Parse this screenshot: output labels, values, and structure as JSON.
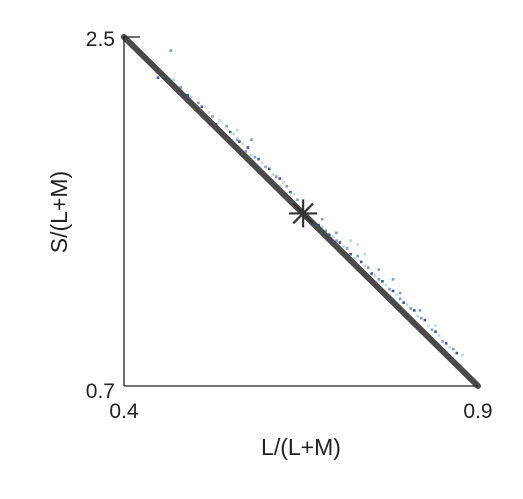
{
  "chart_data": {
    "type": "scatter",
    "title": "",
    "xlabel": "L/(L+M)",
    "ylabel": "S/(L+M)",
    "xlim": [
      0.4,
      0.9
    ],
    "ylim": [
      0.7,
      2.5
    ],
    "xticks": [
      "0.4",
      "0.9"
    ],
    "yticks": [
      "0.7",
      "2.5"
    ],
    "grid": false,
    "legend": "none",
    "line": {
      "x": [
        0.4,
        0.9
      ],
      "y": [
        2.5,
        0.7
      ],
      "color": "#4a4a4a"
    },
    "marker": {
      "x": 0.653,
      "y": 1.59,
      "symbol": "asterisk",
      "color": "#333333"
    },
    "points": [
      [
        0.466,
        2.43,
        1
      ],
      [
        0.445,
        2.32,
        2
      ],
      [
        0.448,
        2.29,
        0
      ],
      [
        0.47,
        2.28,
        2
      ],
      [
        0.48,
        2.24,
        1
      ],
      [
        0.49,
        2.2,
        0
      ],
      [
        0.495,
        2.19,
        2
      ],
      [
        0.505,
        2.16,
        1
      ],
      [
        0.51,
        2.14,
        0
      ],
      [
        0.52,
        2.11,
        2
      ],
      [
        0.525,
        2.09,
        1
      ],
      [
        0.53,
        2.05,
        0
      ],
      [
        0.535,
        2.07,
        2
      ],
      [
        0.545,
        2.04,
        1
      ],
      [
        0.55,
        2.01,
        0
      ],
      [
        0.555,
        2.0,
        2
      ],
      [
        0.56,
        1.97,
        1
      ],
      [
        0.563,
        1.96,
        0
      ],
      [
        0.568,
        1.95,
        2
      ],
      [
        0.572,
        1.91,
        1
      ],
      [
        0.575,
        1.93,
        0
      ],
      [
        0.58,
        1.89,
        2
      ],
      [
        0.585,
        1.88,
        1
      ],
      [
        0.59,
        1.87,
        0
      ],
      [
        0.595,
        1.85,
        2
      ],
      [
        0.6,
        1.83,
        1
      ],
      [
        0.605,
        1.82,
        0
      ],
      [
        0.61,
        1.79,
        2
      ],
      [
        0.615,
        1.78,
        1
      ],
      [
        0.62,
        1.77,
        0
      ],
      [
        0.625,
        1.75,
        2
      ],
      [
        0.63,
        1.73,
        1
      ],
      [
        0.635,
        1.7,
        0
      ],
      [
        0.64,
        1.69,
        2
      ],
      [
        0.645,
        1.66,
        1
      ],
      [
        0.66,
        1.57,
        0
      ],
      [
        0.665,
        1.55,
        2
      ],
      [
        0.67,
        1.54,
        1
      ],
      [
        0.675,
        1.53,
        0
      ],
      [
        0.68,
        1.52,
        2
      ],
      [
        0.685,
        1.5,
        1
      ],
      [
        0.69,
        1.48,
        0
      ],
      [
        0.695,
        1.47,
        2
      ],
      [
        0.7,
        1.45,
        1
      ],
      [
        0.705,
        1.44,
        0
      ],
      [
        0.71,
        1.42,
        2
      ],
      [
        0.715,
        1.41,
        1
      ],
      [
        0.72,
        1.38,
        0
      ],
      [
        0.725,
        1.36,
        2
      ],
      [
        0.73,
        1.37,
        1
      ],
      [
        0.735,
        1.34,
        0
      ],
      [
        0.74,
        1.32,
        2
      ],
      [
        0.745,
        1.31,
        1
      ],
      [
        0.75,
        1.28,
        0
      ],
      [
        0.755,
        1.27,
        2
      ],
      [
        0.76,
        1.25,
        1
      ],
      [
        0.765,
        1.24,
        0
      ],
      [
        0.77,
        1.22,
        2
      ],
      [
        0.775,
        1.2,
        1
      ],
      [
        0.78,
        1.19,
        0
      ],
      [
        0.785,
        1.17,
        2
      ],
      [
        0.79,
        1.15,
        1
      ],
      [
        0.795,
        1.13,
        0
      ],
      [
        0.8,
        1.12,
        2
      ],
      [
        0.805,
        1.1,
        1
      ],
      [
        0.81,
        1.09,
        0
      ],
      [
        0.815,
        1.06,
        2
      ],
      [
        0.82,
        1.05,
        1
      ],
      [
        0.825,
        1.04,
        0
      ],
      [
        0.83,
        1.01,
        2
      ],
      [
        0.835,
        0.99,
        1
      ],
      [
        0.84,
        0.98,
        0
      ],
      [
        0.845,
        0.96,
        2
      ],
      [
        0.85,
        0.93,
        1
      ],
      [
        0.855,
        0.92,
        0
      ],
      [
        0.86,
        0.9,
        2
      ],
      [
        0.865,
        0.89,
        1
      ],
      [
        0.87,
        0.87,
        0
      ],
      [
        0.878,
        0.86,
        2
      ],
      [
        0.818,
        1.09,
        1
      ],
      [
        0.73,
        1.43,
        2
      ],
      [
        0.76,
        1.3,
        1
      ],
      [
        0.56,
        2.02,
        2
      ],
      [
        0.58,
        1.97,
        1
      ],
      [
        0.62,
        1.73,
        2
      ],
      [
        0.7,
        1.49,
        1
      ],
      [
        0.74,
        1.38,
        2
      ],
      [
        0.79,
        1.18,
        1
      ],
      [
        0.84,
        1.01,
        2
      ],
      [
        0.78,
        1.25,
        1
      ],
      [
        0.72,
        1.45,
        2
      ],
      [
        0.68,
        1.56,
        1
      ]
    ],
    "point_colors": [
      "#3f55a8",
      "#7e9bcc",
      "#b8d8e0"
    ]
  }
}
